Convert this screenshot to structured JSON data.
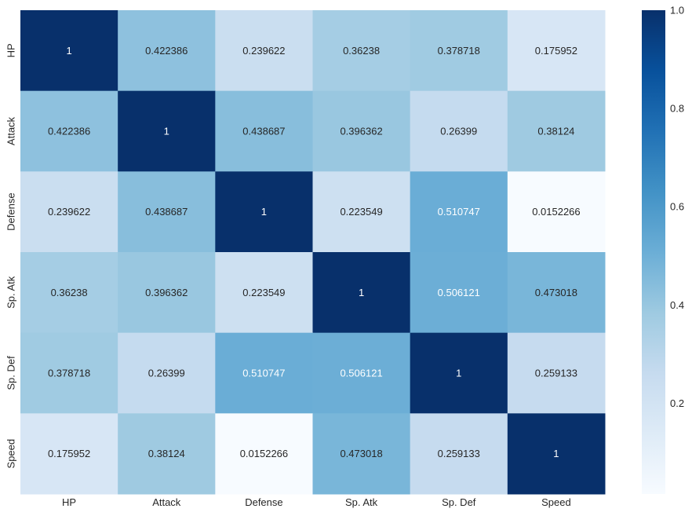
{
  "chart_data": {
    "type": "heatmap",
    "title": "",
    "xlabel": "",
    "ylabel": "",
    "x_categories": [
      "HP",
      "Attack",
      "Defense",
      "Sp. Atk",
      "Sp. Def",
      "Speed"
    ],
    "y_categories": [
      "HP",
      "Attack",
      "Defense",
      "Sp. Atk",
      "Sp. Def",
      "Speed"
    ],
    "values": [
      [
        1,
        0.422386,
        0.239622,
        0.36238,
        0.378718,
        0.175952
      ],
      [
        0.422386,
        1,
        0.438687,
        0.396362,
        0.26399,
        0.38124
      ],
      [
        0.239622,
        0.438687,
        1,
        0.223549,
        0.510747,
        0.0152266
      ],
      [
        0.36238,
        0.396362,
        0.223549,
        1,
        0.506121,
        0.473018
      ],
      [
        0.378718,
        0.26399,
        0.510747,
        0.506121,
        1,
        0.259133
      ],
      [
        0.175952,
        0.38124,
        0.0152266,
        0.473018,
        0.259133,
        1
      ]
    ],
    "annotations": [
      [
        "1",
        "0.422386",
        "0.239622",
        "0.36238",
        "0.378718",
        "0.175952"
      ],
      [
        "0.422386",
        "1",
        "0.438687",
        "0.396362",
        "0.26399",
        "0.38124"
      ],
      [
        "0.239622",
        "0.438687",
        "1",
        "0.223549",
        "0.510747",
        "0.0152266"
      ],
      [
        "0.36238",
        "0.396362",
        "0.223549",
        "1",
        "0.506121",
        "0.473018"
      ],
      [
        "0.378718",
        "0.26399",
        "0.510747",
        "0.506121",
        "1",
        "0.259133"
      ],
      [
        "0.175952",
        "0.38124",
        "0.0152266",
        "0.473018",
        "0.259133",
        "1"
      ]
    ],
    "colormap": "Blues",
    "colorbar": {
      "vmin": 0.0152266,
      "vmax": 1.0,
      "ticks": [
        0.2,
        0.4,
        0.6,
        0.8,
        1.0
      ],
      "tick_labels": [
        "0.2",
        "0.4",
        "0.6",
        "0.8",
        "1.0"
      ]
    },
    "colors": {
      "text_dark": "#262626",
      "text_light": "#ffffff",
      "blues_stops": [
        "#f7fbff",
        "#deebf7",
        "#c6dbef",
        "#9ecae1",
        "#6baed6",
        "#4292c6",
        "#2171b5",
        "#08519c",
        "#08306b"
      ]
    }
  }
}
